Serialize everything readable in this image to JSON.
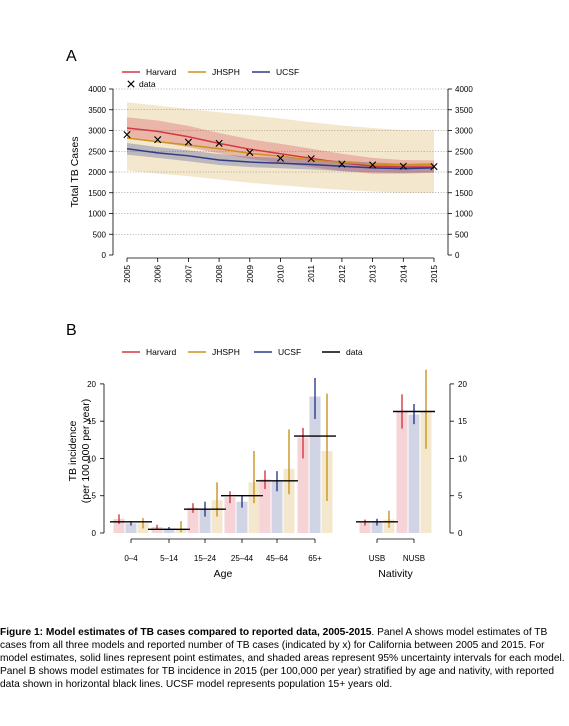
{
  "colors": {
    "Harvard": "#d43745",
    "JHSPH": "#c8941f",
    "UCSF": "#2f3b87",
    "data": "#000000",
    "grid": "#7a7a7a"
  },
  "chart_data": [
    {
      "panel_label": "A",
      "type": "line",
      "ylabel": "Total TB Cases",
      "xlabel": "",
      "x": [
        2005,
        2006,
        2007,
        2008,
        2009,
        2010,
        2011,
        2012,
        2013,
        2014,
        2015
      ],
      "ylim": [
        0,
        4000
      ],
      "yticks": [
        0,
        500,
        1000,
        1500,
        2000,
        2500,
        3000,
        3500,
        4000
      ],
      "grid": "horizontal dotted",
      "legend_position": "top-left",
      "legend_title_items": [
        "Harvard",
        "JHSPH",
        "UCSF"
      ],
      "data_label": "data",
      "data_marker": "x",
      "data_values": [
        2900,
        2780,
        2720,
        2690,
        2470,
        2330,
        2320,
        2190,
        2170,
        2140,
        2130
      ],
      "series": [
        {
          "name": "Harvard",
          "values": [
            3060,
            2980,
            2850,
            2690,
            2550,
            2440,
            2330,
            2220,
            2140,
            2120,
            2120
          ],
          "lower": [
            2800,
            2720,
            2600,
            2450,
            2320,
            2210,
            2120,
            2020,
            1960,
            1960,
            1980
          ],
          "upper": [
            3320,
            3240,
            3110,
            2940,
            2790,
            2680,
            2560,
            2440,
            2340,
            2290,
            2280
          ]
        },
        {
          "name": "JHSPH",
          "values": [
            2820,
            2730,
            2650,
            2560,
            2450,
            2380,
            2290,
            2230,
            2190,
            2170,
            2180
          ],
          "lower": [
            2040,
            1960,
            1900,
            1820,
            1740,
            1680,
            1620,
            1570,
            1530,
            1500,
            1500
          ],
          "upper": [
            3680,
            3600,
            3520,
            3440,
            3370,
            3290,
            3200,
            3120,
            3060,
            3010,
            3000
          ]
        },
        {
          "name": "UCSF",
          "values": [
            2560,
            2460,
            2390,
            2290,
            2240,
            2210,
            2180,
            2140,
            2100,
            2080,
            2100
          ],
          "lower": [
            2420,
            2340,
            2260,
            2170,
            2120,
            2090,
            2060,
            2020,
            1990,
            1980,
            1990
          ],
          "upper": [
            2700,
            2600,
            2520,
            2430,
            2370,
            2340,
            2310,
            2270,
            2230,
            2200,
            2210
          ]
        }
      ]
    },
    {
      "panel_label": "B",
      "type": "bar",
      "ylabel": "TB incidence\n(per 100,000 per year)",
      "ylim": [
        0,
        22
      ],
      "yticks": [
        0,
        5,
        10,
        15,
        20
      ],
      "legend_position": "top",
      "legend_items": [
        "Harvard",
        "JHSPH",
        "UCSF",
        "data"
      ],
      "groups": [
        {
          "label": "Age",
          "categories": [
            "0–4",
            "5–14",
            "15–24",
            "25–44",
            "45–64",
            "65+"
          ]
        },
        {
          "label": "Nativity",
          "categories": [
            "USB",
            "NUSB"
          ]
        }
      ],
      "categories": [
        "0–4",
        "5–14",
        "15–24",
        "25–44",
        "45–64",
        "65+",
        "USB",
        "NUSB"
      ],
      "data_values": [
        1.5,
        0.5,
        3.2,
        5.0,
        7.0,
        13.0,
        1.5,
        16.3
      ],
      "series": [
        {
          "name": "Harvard",
          "values": [
            1.9,
            0.8,
            3.4,
            4.8,
            7.2,
            12.8,
            1.4,
            16.2
          ],
          "lower": [
            1.2,
            0.4,
            2.7,
            4.0,
            5.9,
            10.0,
            1.0,
            14.0
          ],
          "upper": [
            2.5,
            1.1,
            4.0,
            5.6,
            8.4,
            14.1,
            1.8,
            18.6
          ]
        },
        {
          "name": "UCSF",
          "values": [
            1.3,
            0.6,
            3.2,
            4.2,
            7.0,
            18.3,
            1.4,
            15.9
          ],
          "lower": [
            1.0,
            0.4,
            2.2,
            3.4,
            5.6,
            15.3,
            1.0,
            14.6
          ],
          "upper": [
            1.6,
            0.8,
            4.2,
            5.0,
            8.3,
            20.8,
            1.9,
            17.3
          ]
        },
        {
          "name": "JHSPH",
          "values": [
            1.3,
            0.5,
            4.4,
            6.8,
            8.6,
            11.0,
            1.8,
            16.3
          ],
          "lower": [
            0.6,
            0.1,
            2.2,
            4.0,
            5.2,
            4.3,
            0.7,
            11.3
          ],
          "upper": [
            2.0,
            1.6,
            6.8,
            11.0,
            13.9,
            18.7,
            3.0,
            21.9
          ]
        }
      ]
    }
  ],
  "caption": {
    "bold": "Figure 1: Model estimates of TB cases compared to reported data, 2005-2015",
    "text": ". Panel A shows model estimates of TB cases from all three models and reported number of TB cases (indicated by x) for California between 2005 and 2015. For model estimates, solid lines represent point estimates, and shaded areas represent 95% uncertainty intervals for each model. Panel B shows model estimates for TB incidence in 2015 (per 100,000 per year) stratified by age and nativity, with reported data shown in horizontal black lines. UCSF model represents population 15+ years old."
  }
}
